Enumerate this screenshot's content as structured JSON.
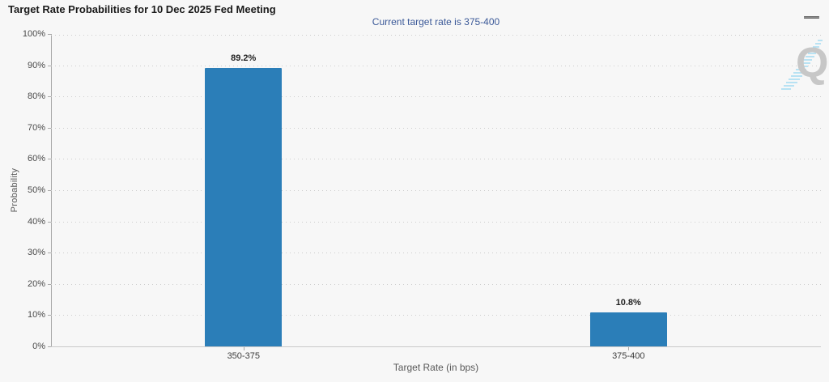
{
  "chart_data": {
    "type": "bar",
    "title": "Target Rate Probabilities for 10 Dec 2025 Fed Meeting",
    "subtitle": "Current target rate is 375-400",
    "categories": [
      "350-375",
      "375-400"
    ],
    "values": [
      89.2,
      10.8
    ],
    "value_labels": [
      "89.2%",
      "10.8%"
    ],
    "xlabel": "Target Rate (in bps)",
    "ylabel": "Probability",
    "ylim": [
      0,
      100
    ],
    "ytick_step": 10,
    "ytick_suffix": "%",
    "grid": true,
    "gridline_style": "dotted",
    "legend": "none",
    "bar_color": "#2b7eb8"
  },
  "toolbar": {
    "context_menu_icon": "hamburger-icon"
  },
  "watermark": {
    "letter": "Q",
    "logo_name": "quikstrike-q-logo",
    "letter_color": "#c7c7c7",
    "stripe_color": "#a9ddf2"
  },
  "colors": {
    "background": "#f7f7f7",
    "bar": "#2b7eb8",
    "title_text": "#1a1a1a",
    "subtitle_text": "#3b5998",
    "axis_text": "#4a4a4a",
    "gridline": "#cdcdcd"
  }
}
